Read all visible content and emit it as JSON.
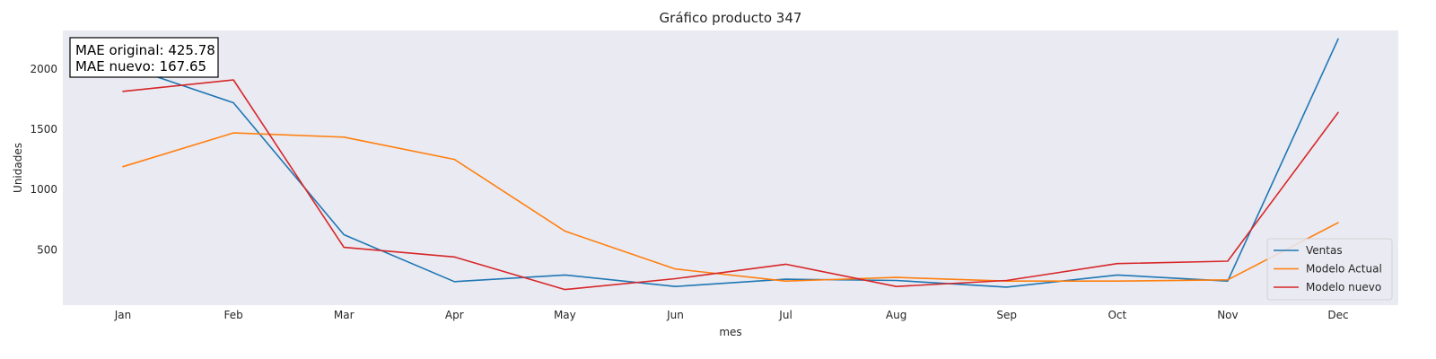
{
  "chart_data": {
    "type": "line",
    "title": "Gráfico producto 347",
    "xlabel": "mes",
    "ylabel": "Unidades",
    "categories": [
      "Jan",
      "Feb",
      "Mar",
      "Apr",
      "May",
      "Jun",
      "Jul",
      "Aug",
      "Sep",
      "Oct",
      "Nov",
      "Dec"
    ],
    "ylim": [
      40,
      2320
    ],
    "yticks": [
      500,
      1000,
      1500,
      2000
    ],
    "grid": false,
    "legend_position": "lower-right",
    "series": [
      {
        "name": "Ventas",
        "color": "#1f77b4",
        "values": [
          2030,
          1720,
          625,
          235,
          290,
          195,
          255,
          245,
          190,
          290,
          240,
          2250
        ]
      },
      {
        "name": "Modelo Actual",
        "color": "#ff7f0e",
        "values": [
          1190,
          1470,
          1435,
          1250,
          655,
          340,
          240,
          270,
          240,
          240,
          250,
          725
        ]
      },
      {
        "name": "Modelo nuevo",
        "color": "#d62728",
        "values": [
          1815,
          1910,
          520,
          440,
          170,
          260,
          380,
          195,
          245,
          385,
          405,
          1640
        ]
      }
    ],
    "annotation": {
      "lines": [
        "MAE original: 425.78",
        "MAE nuevo: 167.65"
      ]
    }
  }
}
